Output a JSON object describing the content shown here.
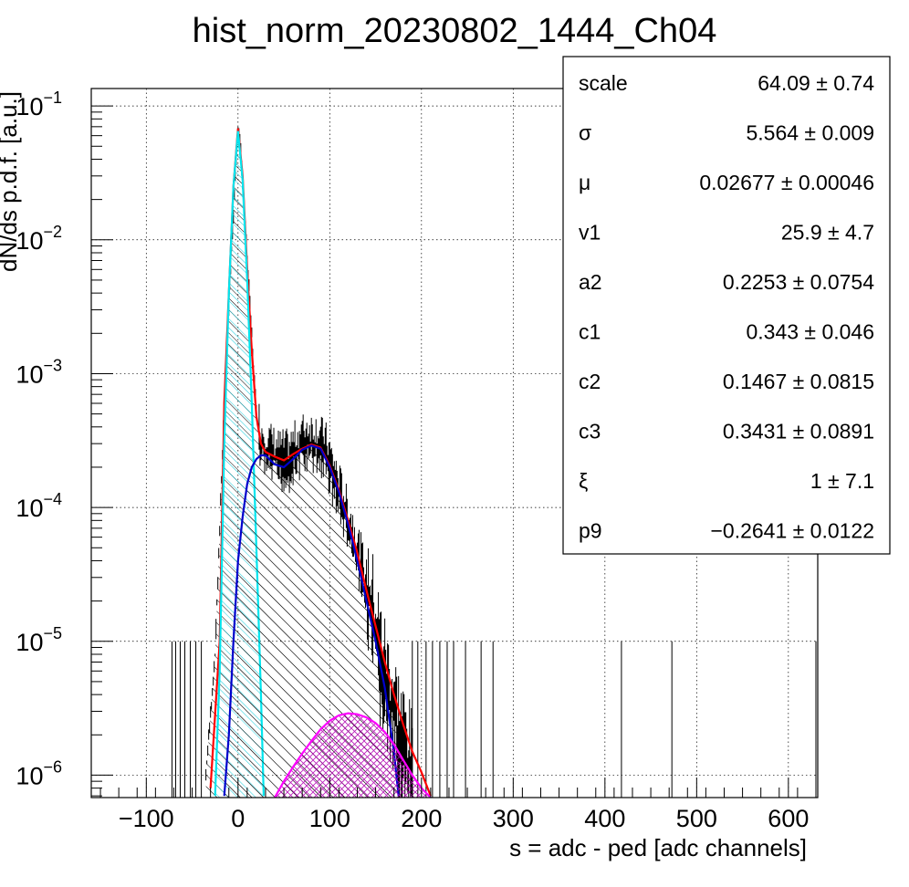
{
  "chart_data": {
    "type": "histogram",
    "title": "hist_norm_20230802_1444_Ch04",
    "xlabel": "s = adc - ped [adc channels]",
    "ylabel": "dN/ds p.d.f. [a.u.]",
    "xlim": [
      -160,
      632
    ],
    "ylim": [
      6.8e-07,
      0.135
    ],
    "yscale": "log",
    "grid": true,
    "x_ticks": [
      -100,
      0,
      100,
      200,
      300,
      400,
      500,
      600
    ],
    "y_ticks": [
      {
        "base": "10",
        "exp": "−6",
        "value": 1e-06
      },
      {
        "base": "10",
        "exp": "−5",
        "value": 1e-05
      },
      {
        "base": "10",
        "exp": "−4",
        "value": 0.0001
      },
      {
        "base": "10",
        "exp": "−3",
        "value": 0.001
      },
      {
        "base": "10",
        "exp": "−2",
        "value": 0.01
      },
      {
        "base": "10",
        "exp": "−1",
        "value": 0.1
      }
    ],
    "histogram": {
      "color": "#000000",
      "envelope": [
        [
          -35,
          1e-06
        ],
        [
          -25,
          8e-06
        ],
        [
          -15,
          0.0006
        ],
        [
          -8,
          0.006
        ],
        [
          -3,
          0.03
        ],
        [
          0,
          0.068
        ],
        [
          3,
          0.045
        ],
        [
          8,
          0.012
        ],
        [
          14,
          0.0025
        ],
        [
          20,
          0.0005
        ],
        [
          25,
          0.0003
        ],
        [
          35,
          0.00025
        ],
        [
          45,
          0.00022
        ],
        [
          55,
          0.00022
        ],
        [
          65,
          0.00027
        ],
        [
          75,
          0.00031
        ],
        [
          85,
          0.0003
        ],
        [
          95,
          0.00026
        ],
        [
          105,
          0.00016
        ],
        [
          115,
          0.0001
        ],
        [
          125,
          6e-05
        ],
        [
          135,
          3.5e-05
        ],
        [
          145,
          1.6e-05
        ],
        [
          155,
          7e-06
        ],
        [
          165,
          3.5e-06
        ],
        [
          175,
          2e-06
        ],
        [
          185,
          1.2e-06
        ],
        [
          190,
          9e-07
        ]
      ],
      "sparse_entries_x": [
        -72,
        -68,
        -63,
        -58,
        -52,
        -46,
        -40,
        190,
        196,
        205,
        212,
        220,
        228,
        235,
        248,
        265,
        278,
        418,
        473,
        630
      ]
    },
    "series": [
      {
        "name": "",
        "color": "#ff0000",
        "points": [
          [
            -30,
            8e-07
          ],
          [
            -20,
            1e-05
          ],
          [
            -15,
            0.0006
          ],
          [
            -10,
            0.004
          ],
          [
            -5,
            0.025
          ],
          [
            0,
            0.068
          ],
          [
            5,
            0.03
          ],
          [
            10,
            0.006
          ],
          [
            15,
            0.0015
          ],
          [
            20,
            0.00048
          ],
          [
            25,
            0.0003
          ],
          [
            30,
            0.00026
          ],
          [
            40,
            0.00024
          ],
          [
            50,
            0.000225
          ],
          [
            60,
            0.00025
          ],
          [
            70,
            0.000275
          ],
          [
            80,
            0.000295
          ],
          [
            90,
            0.00028
          ],
          [
            100,
            0.000205
          ],
          [
            110,
            0.000135
          ],
          [
            120,
            8e-05
          ],
          [
            130,
            4.6e-05
          ],
          [
            140,
            2.4e-05
          ],
          [
            150,
            1.3e-05
          ],
          [
            160,
            7e-06
          ],
          [
            170,
            4e-06
          ],
          [
            180,
            2.4e-06
          ],
          [
            190,
            1.5e-06
          ],
          [
            200,
            1.05e-06
          ],
          [
            210,
            7e-07
          ]
        ]
      },
      {
        "name": "",
        "color": "#00e5ee",
        "fill": "hatch",
        "points": [
          [
            -25,
            7e-07
          ],
          [
            -20,
            6e-06
          ],
          [
            -15,
            0.0003
          ],
          [
            -10,
            0.004
          ],
          [
            -5,
            0.025
          ],
          [
            0,
            0.065
          ],
          [
            5,
            0.028
          ],
          [
            10,
            0.005
          ],
          [
            15,
            0.0006
          ],
          [
            20,
            5e-05
          ],
          [
            25,
            4e-06
          ],
          [
            28,
            7e-07
          ]
        ]
      },
      {
        "name": "",
        "color": "#0000cc",
        "fill": "hatch",
        "points": [
          [
            -15,
            7e-07
          ],
          [
            -10,
            2e-06
          ],
          [
            -5,
            1e-05
          ],
          [
            0,
            4e-05
          ],
          [
            5,
            8.5e-05
          ],
          [
            10,
            0.00015
          ],
          [
            15,
            0.0002
          ],
          [
            20,
            0.00023
          ],
          [
            25,
            0.000245
          ],
          [
            30,
            0.000245
          ],
          [
            40,
            0.00021
          ],
          [
            50,
            0.0002
          ],
          [
            60,
            0.00023
          ],
          [
            70,
            0.00027
          ],
          [
            80,
            0.00029
          ],
          [
            90,
            0.000275
          ],
          [
            100,
            0.0002
          ],
          [
            110,
            0.00013
          ],
          [
            120,
            7.5e-05
          ],
          [
            130,
            4e-05
          ],
          [
            140,
            2e-05
          ],
          [
            150,
            1e-05
          ],
          [
            160,
            4.5e-06
          ],
          [
            170,
            1.5e-06
          ],
          [
            175,
            7e-07
          ]
        ]
      },
      {
        "name": "",
        "color": "#ff00ff",
        "fill": "crosshatch",
        "points": [
          [
            40,
            6.8e-07
          ],
          [
            50,
            9e-07
          ],
          [
            60,
            1.15e-06
          ],
          [
            70,
            1.45e-06
          ],
          [
            80,
            1.8e-06
          ],
          [
            90,
            2.2e-06
          ],
          [
            100,
            2.55e-06
          ],
          [
            110,
            2.8e-06
          ],
          [
            120,
            2.9e-06
          ],
          [
            130,
            2.85e-06
          ],
          [
            140,
            2.7e-06
          ],
          [
            150,
            2.45e-06
          ],
          [
            160,
            2.1e-06
          ],
          [
            170,
            1.7e-06
          ],
          [
            180,
            1.3e-06
          ],
          [
            190,
            1e-06
          ],
          [
            200,
            8e-07
          ],
          [
            210,
            6.8e-07
          ]
        ]
      }
    ]
  },
  "stats_box": {
    "rows": [
      {
        "label": "scale",
        "value": "64.09 ± 0.74"
      },
      {
        "label": "σ",
        "value": "5.564 ± 0.009"
      },
      {
        "label": "μ",
        "value": "0.02677 ± 0.00046"
      },
      {
        "label": "v1",
        "value": "25.9 ± 4.7"
      },
      {
        "label": "a2",
        "value": "0.2253 ± 0.0754"
      },
      {
        "label": "c1",
        "value": "0.343 ± 0.046"
      },
      {
        "label": "c2",
        "value": "0.1467 ± 0.0815"
      },
      {
        "label": "c3",
        "value": "0.3431 ± 0.0891"
      },
      {
        "label": "ξ",
        "value": "1 ± 7.1"
      },
      {
        "label": "p9",
        "value": "−0.2641 ± 0.0122"
      }
    ]
  }
}
